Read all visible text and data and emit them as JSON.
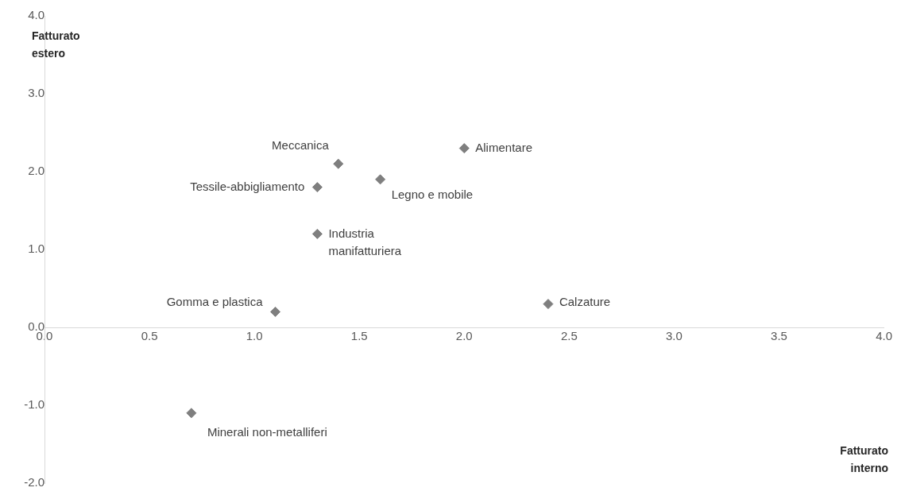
{
  "chart_data": {
    "type": "scatter",
    "xlabel": "Fatturato interno",
    "ylabel": "Fatturato estero",
    "x": [
      2.0,
      1.4,
      1.3,
      1.6,
      1.3,
      1.1,
      2.4,
      0.7
    ],
    "series": [
      {
        "color": "#7f7f7f",
        "values": [
          2.3,
          2.1,
          1.8,
          1.9,
          1.2,
          0.2,
          0.3,
          -1.1
        ]
      }
    ],
    "marker": "diamond",
    "grid": false,
    "xlim": [
      0,
      4
    ],
    "xticks": [
      {
        "value": 0,
        "label": "0.0"
      },
      0.5,
      {
        "value": 1,
        "label": "1.0"
      },
      1.5,
      {
        "value": 2,
        "label": "2.0"
      },
      2.5,
      {
        "value": 3,
        "label": "3.0"
      },
      3.5,
      {
        "value": 4,
        "label": "4.0"
      }
    ],
    "ylim": [
      -2,
      4
    ],
    "yticks": [
      {
        "value": -2,
        "label": "-2.0"
      },
      {
        "value": -1,
        "label": "-1.0"
      },
      {
        "value": 0,
        "label": "0.0"
      },
      {
        "value": 1,
        "label": "1.0"
      },
      {
        "value": 2,
        "label": "2.0"
      },
      {
        "value": 3,
        "label": "3.0"
      },
      {
        "value": 4,
        "label": "4.0"
      }
    ],
    "annotations": [
      {
        "text": "Alimentare",
        "x": 2.0,
        "y": 2.3
      },
      {
        "text": "Meccanica",
        "x": 1.4,
        "y": 2.1
      },
      {
        "text": "Tessile-abbigliamento",
        "x": 1.3,
        "y": 1.8
      },
      {
        "text": "Legno e mobile",
        "x": 1.6,
        "y": 1.9
      },
      {
        "text": "Industria manifatturiera",
        "x": 1.3,
        "y": 1.2
      },
      {
        "text": "Gomma e plastica",
        "x": 1.1,
        "y": 0.2
      },
      {
        "text": "Calzature",
        "x": 2.4,
        "y": 0.3
      },
      {
        "text": "Minerali non-metalliferi",
        "x": 0.7,
        "y": -1.1
      }
    ]
  }
}
